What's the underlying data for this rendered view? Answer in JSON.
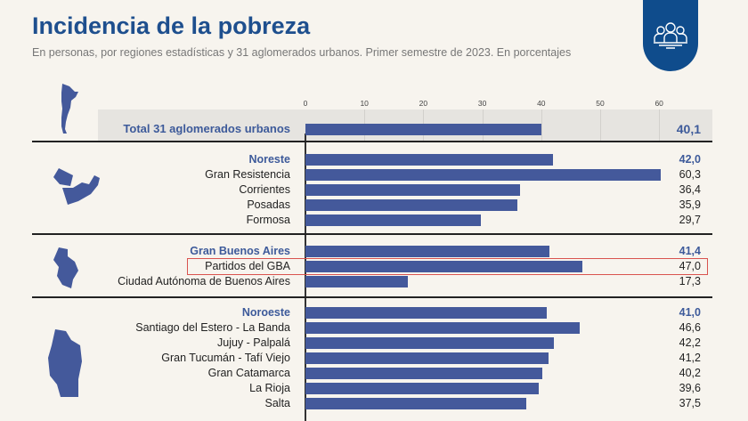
{
  "header": {
    "title": "Incidencia de la pobreza",
    "subtitle": "En personas, por regiones estadísticas y 31 aglomerados urbanos. Primer semestre de 2023. En porcentajes",
    "icon": "people-group-icon"
  },
  "chart_data": {
    "type": "bar",
    "orientation": "horizontal",
    "xlim": [
      0,
      60
    ],
    "ticks": [
      "0",
      "10",
      "20",
      "30",
      "40",
      "50",
      "60"
    ],
    "bar_color": "#44599b",
    "highlight_color": "#d9534f",
    "rows": [
      {
        "label": "Total 31 aglomerados urbanos",
        "value": 40.1,
        "display": "40,1",
        "kind": "total"
      },
      {
        "label": "Noreste",
        "value": 42.0,
        "display": "42,0",
        "kind": "region"
      },
      {
        "label": "Gran Resistencia",
        "value": 60.3,
        "display": "60,3"
      },
      {
        "label": "Corrientes",
        "value": 36.4,
        "display": "36,4"
      },
      {
        "label": "Posadas",
        "value": 35.9,
        "display": "35,9"
      },
      {
        "label": "Formosa",
        "value": 29.7,
        "display": "29,7"
      },
      {
        "label": "Gran Buenos Aires",
        "value": 41.4,
        "display": "41,4",
        "kind": "region"
      },
      {
        "label": "Partidos del GBA",
        "value": 47.0,
        "display": "47,0",
        "highlight": true
      },
      {
        "label": "Ciudad Autónoma de Buenos Aires",
        "value": 17.3,
        "display": "17,3"
      },
      {
        "label": "Noroeste",
        "value": 41.0,
        "display": "41,0",
        "kind": "region"
      },
      {
        "label": "Santiago del Estero - La Banda",
        "value": 46.6,
        "display": "46,6"
      },
      {
        "label": "Jujuy -  Palpalá",
        "value": 42.2,
        "display": "42,2"
      },
      {
        "label": "Gran Tucumán - Tafí Viejo",
        "value": 41.2,
        "display": "41,2"
      },
      {
        "label": "Gran Catamarca",
        "value": 40.2,
        "display": "40,2"
      },
      {
        "label": "La Rioja",
        "value": 39.6,
        "display": "39,6"
      },
      {
        "label": "Salta",
        "value": 37.5,
        "display": "37,5"
      }
    ]
  }
}
